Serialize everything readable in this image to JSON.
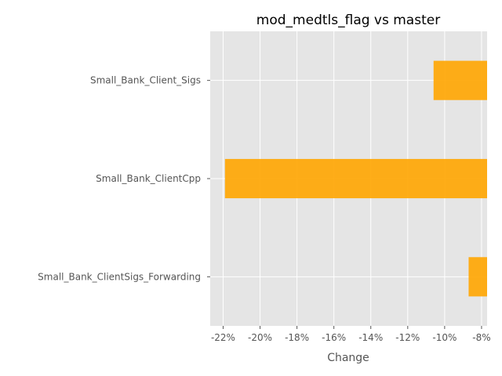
{
  "chart_data": {
    "type": "bar",
    "orientation": "horizontal",
    "title": "mod_medtls_flag vs master",
    "xlabel": "Change",
    "ylabel": "",
    "categories": [
      "Small_Bank_Client_Sigs",
      "Small_Bank_ClientCpp",
      "Small_Bank_ClientSigs_Forwarding"
    ],
    "values": [
      -10.6,
      -21.9,
      -8.7
    ],
    "xlim": [
      -22.7,
      -7.7
    ],
    "xticks": [
      -22,
      -20,
      -18,
      -16,
      -14,
      -12,
      -10,
      -8
    ],
    "xtick_labels": [
      "-22%",
      "-20%",
      "-18%",
      "-16%",
      "-14%",
      "-12%",
      "-10%",
      "-8%"
    ],
    "grid": true,
    "colors": {
      "bar": "#ffa500",
      "plot_background": "#e5e5e5",
      "grid": "#ffffff"
    }
  }
}
